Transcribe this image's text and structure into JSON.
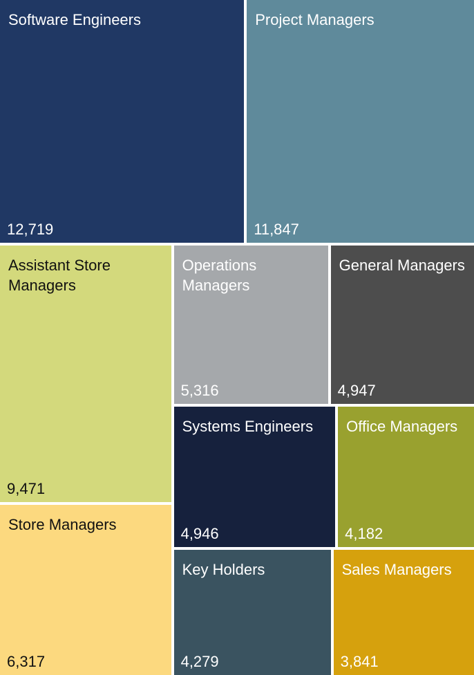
{
  "chart_data": {
    "type": "treemap",
    "categories": [
      "Software Engineers",
      "Project Managers",
      "Assistant Store Managers",
      "Store Managers",
      "Operations Managers",
      "General Managers",
      "Systems Engineers",
      "Key Holders",
      "Office Managers",
      "Sales Managers"
    ],
    "values": [
      12719,
      11847,
      9471,
      6317,
      5316,
      4947,
      4946,
      4279,
      4182,
      3841
    ],
    "value_labels": [
      "12,719",
      "11,847",
      "9,471",
      "6,317",
      "5,316",
      "4,947",
      "4,946",
      "4,279",
      "4,182",
      "3,841"
    ],
    "colors": [
      "#203864",
      "#5f8a9b",
      "#d3d97c",
      "#fcd97f",
      "#a5a8ab",
      "#4d4d4d",
      "#16213d",
      "#3a5360",
      "#99a12f",
      "#d6a10d"
    ]
  }
}
